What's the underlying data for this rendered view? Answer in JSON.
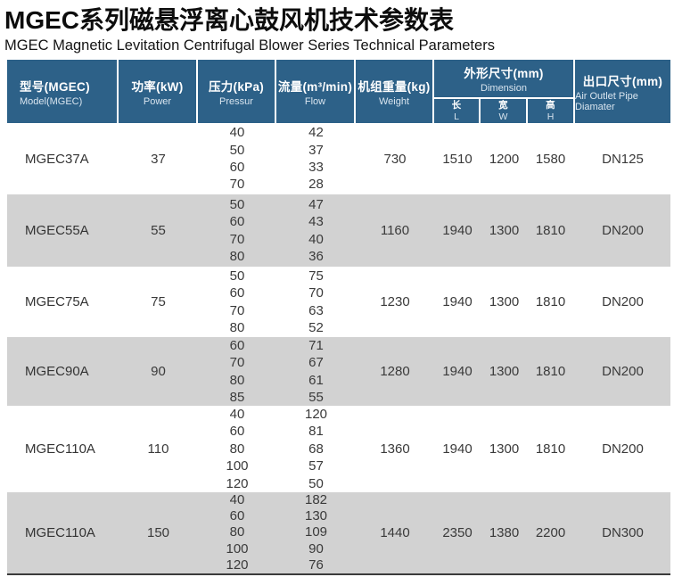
{
  "page": {
    "title": "MGEC系列磁悬浮离心鼓风机技术参数表",
    "subtitle": "MGEC Magnetic Levitation Centrifugal Blower Series Technical Parameters"
  },
  "colors": {
    "header_bg": "#2d6188",
    "alt_row_bg": "#d2d2d2",
    "header_text": "#ffffff",
    "body_text": "#3a3a3a",
    "bottom_border": "#3b3b3b"
  },
  "table": {
    "columns": [
      {
        "zh": "型号(MGEC)",
        "en": "Model(MGEC)"
      },
      {
        "zh": "功率(kW)",
        "en": "Power"
      },
      {
        "zh": "压力(kPa)",
        "en": "Pressur"
      },
      {
        "zh": "流量(m³/min)",
        "en": "Flow"
      },
      {
        "zh": "机组重量(kg)",
        "en": "Weight"
      },
      {
        "zh": "外形尺寸(mm)",
        "en": "Dimension",
        "sub": [
          {
            "zh": "长",
            "en": "L"
          },
          {
            "zh": "宽",
            "en": "W"
          },
          {
            "zh": "高",
            "en": "H"
          }
        ]
      },
      {
        "zh": "出口尺寸(mm)",
        "en": "Air Outlet Pipe Diamater"
      }
    ],
    "rows": [
      {
        "model": "MGEC37A",
        "power": "37",
        "pressure": [
          "40",
          "50",
          "60",
          "70"
        ],
        "flow": [
          "42",
          "37",
          "33",
          "28"
        ],
        "weight": "730",
        "length": "1510",
        "width": "1200",
        "height": "1580",
        "outlet": "DN125"
      },
      {
        "model": "MGEC55A",
        "power": "55",
        "pressure": [
          "50",
          "60",
          "70",
          "80"
        ],
        "flow": [
          "47",
          "43",
          "40",
          "36"
        ],
        "weight": "1160",
        "length": "1940",
        "width": "1300",
        "height": "1810",
        "outlet": "DN200"
      },
      {
        "model": "MGEC75A",
        "power": "75",
        "pressure": [
          "50",
          "60",
          "70",
          "80"
        ],
        "flow": [
          "75",
          "70",
          "63",
          "52"
        ],
        "weight": "1230",
        "length": "1940",
        "width": "1300",
        "height": "1810",
        "outlet": "DN200"
      },
      {
        "model": "MGEC90A",
        "power": "90",
        "pressure": [
          "60",
          "70",
          "80",
          "85"
        ],
        "flow": [
          "71",
          "67",
          "61",
          "55"
        ],
        "weight": "1280",
        "length": "1940",
        "width": "1300",
        "height": "1810",
        "outlet": "DN200"
      },
      {
        "model": "MGEC110A",
        "power": "110",
        "pressure": [
          "40",
          "60",
          "80",
          "100",
          "120"
        ],
        "flow": [
          "120",
          "81",
          "68",
          "57",
          "50"
        ],
        "weight": "1360",
        "length": "1940",
        "width": "1300",
        "height": "1810",
        "outlet": "DN200"
      },
      {
        "model": "MGEC110A",
        "power": "150",
        "pressure": [
          "40",
          "60",
          "80",
          "100",
          "120"
        ],
        "flow": [
          "182",
          "130",
          "109",
          "90",
          "76"
        ],
        "weight": "1440",
        "length": "2350",
        "width": "1380",
        "height": "2200",
        "outlet": "DN300"
      }
    ]
  }
}
